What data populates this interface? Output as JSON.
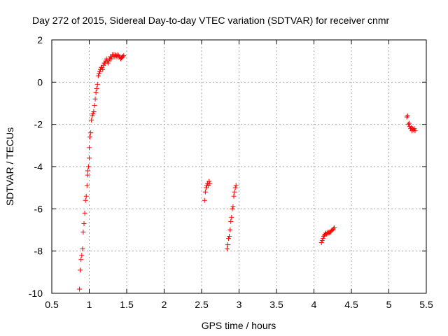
{
  "chart_data": {
    "type": "scatter",
    "title": "Day 272 of 2015, Sidereal Day-to-day VTEC variation (SDTVAR) for receiver cnmr",
    "xlabel": "GPS time / hours",
    "ylabel": "SDTVAR / TECUs",
    "xlim": [
      0.5,
      5.5
    ],
    "ylim": [
      -10,
      2
    ],
    "xticks": [
      0.5,
      1,
      1.5,
      2,
      2.5,
      3,
      3.5,
      4,
      4.5,
      5,
      5.5
    ],
    "yticks": [
      -10,
      -8,
      -6,
      -4,
      -2,
      0,
      2
    ],
    "xtick_labels": [
      "0.5",
      "1",
      "1.5",
      "2",
      "2.5",
      "3",
      "3.5",
      "4",
      "4.5",
      "5",
      "5.5"
    ],
    "ytick_labels": [
      "-10",
      "-8",
      "-6",
      "-4",
      "-2",
      "0",
      "2"
    ],
    "grid": true,
    "marker": "+",
    "color": "#ff0000",
    "series": [
      {
        "name": "SDTVAR",
        "x": [
          0.87,
          0.88,
          0.89,
          0.9,
          0.91,
          0.92,
          0.93,
          0.94,
          0.95,
          0.96,
          0.97,
          0.98,
          0.98,
          0.99,
          1.0,
          1.0,
          1.01,
          1.02,
          1.03,
          1.04,
          1.05,
          1.06,
          1.07,
          1.08,
          1.09,
          1.1,
          1.11,
          1.12,
          1.13,
          1.14,
          1.15,
          1.16,
          1.17,
          1.18,
          1.19,
          1.2,
          1.21,
          1.22,
          1.23,
          1.24,
          1.25,
          1.26,
          1.27,
          1.28,
          1.29,
          1.3,
          1.31,
          1.32,
          1.33,
          1.34,
          1.35,
          1.36,
          1.37,
          1.38,
          1.39,
          1.4,
          1.41,
          1.42,
          1.43,
          1.44,
          1.45,
          1.46,
          2.54,
          2.55,
          2.56,
          2.57,
          2.58,
          2.59,
          2.6,
          2.61,
          2.84,
          2.85,
          2.86,
          2.87,
          2.88,
          2.89,
          2.9,
          2.91,
          2.92,
          2.93,
          2.94,
          2.95,
          2.96,
          4.1,
          4.11,
          4.12,
          4.13,
          4.14,
          4.15,
          4.16,
          4.17,
          4.18,
          4.19,
          4.2,
          4.21,
          4.22,
          4.23,
          4.24,
          4.25,
          4.26,
          4.27,
          5.24,
          5.25,
          5.26,
          5.27,
          5.28,
          5.29,
          5.3,
          5.31,
          5.32,
          5.33,
          5.34,
          5.35
        ],
        "y": [
          -9.8,
          -8.9,
          -8.4,
          -8.2,
          -7.9,
          -7.1,
          -6.7,
          -6.2,
          -5.6,
          -5.4,
          -4.9,
          -4.4,
          -4.2,
          -4.0,
          -3.6,
          -3.1,
          -2.6,
          -2.4,
          -1.8,
          -1.6,
          -1.5,
          -1.4,
          -1.1,
          -0.8,
          -0.5,
          -0.3,
          -0.1,
          0.3,
          0.4,
          0.5,
          0.6,
          0.7,
          0.7,
          0.6,
          0.8,
          0.9,
          0.9,
          1.0,
          1.1,
          1.0,
          0.9,
          1.0,
          1.1,
          1.2,
          1.1,
          1.2,
          1.3,
          1.2,
          1.3,
          1.2,
          1.3,
          1.25,
          1.2,
          1.3,
          1.25,
          1.2,
          1.2,
          1.1,
          1.15,
          1.2,
          1.2,
          1.25,
          -5.6,
          -5.2,
          -5.0,
          -4.9,
          -4.8,
          -4.9,
          -4.7,
          -4.8,
          -7.9,
          -7.7,
          -7.4,
          -7.3,
          -7.0,
          -6.6,
          -6.4,
          -6.0,
          -5.9,
          -5.4,
          -5.2,
          -5.0,
          -4.9,
          -7.6,
          -7.5,
          -7.4,
          -7.3,
          -7.25,
          -7.2,
          -7.15,
          -7.2,
          -7.15,
          -7.1,
          -7.15,
          -7.1,
          -7.1,
          -7.05,
          -7.0,
          -7.0,
          -6.95,
          -6.9,
          -1.65,
          -1.6,
          -2.0,
          -1.95,
          -2.1,
          -2.2,
          -2.15,
          -2.3,
          -2.2,
          -2.25,
          -2.2,
          -2.3
        ]
      }
    ]
  }
}
